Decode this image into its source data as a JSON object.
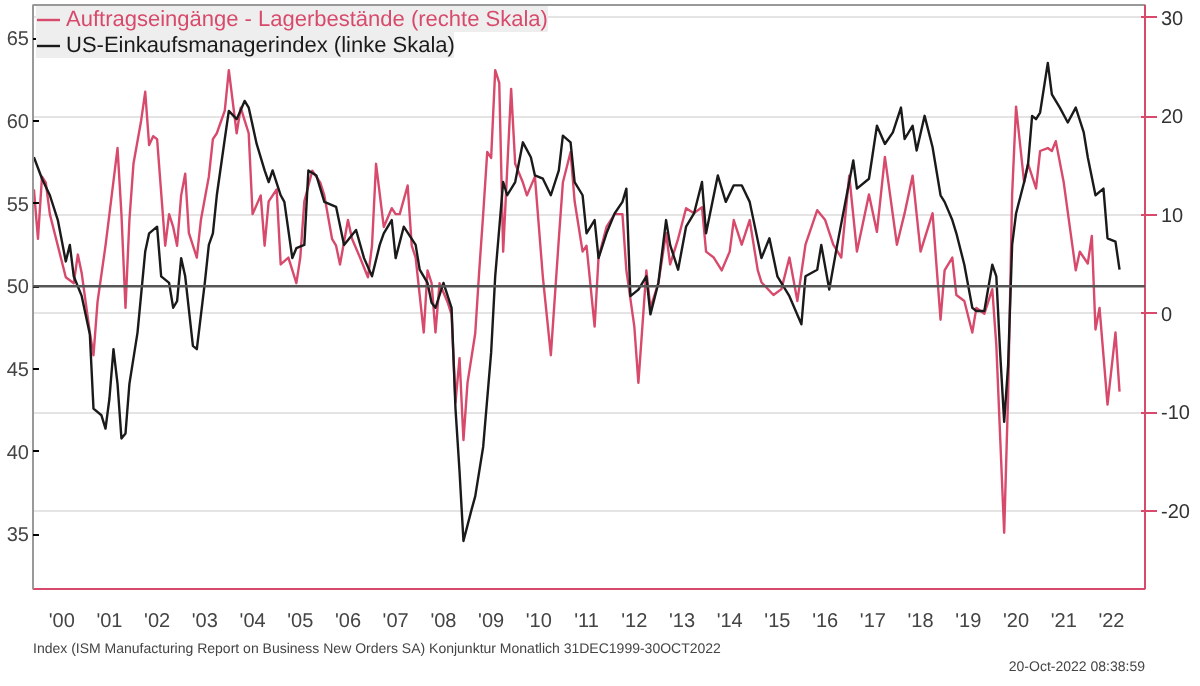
{
  "chart_data": {
    "type": "line",
    "series": [
      {
        "name": "Auftragseingänge - Lagerbestände (rechte Skala)",
        "color": "#d84a6c",
        "axis": "y2",
        "x": [
          "1999-12",
          "2000-01",
          "2000-02",
          "2000-03",
          "2000-04",
          "2000-06",
          "2000-08",
          "2000-10",
          "2000-11",
          "2000-12",
          "2001-02",
          "2001-03",
          "2001-04",
          "2001-06",
          "2001-07",
          "2001-09",
          "2001-10",
          "2001-11",
          "2001-12",
          "2002-01",
          "2002-03",
          "2002-04",
          "2002-05",
          "2002-06",
          "2002-07",
          "2002-09",
          "2002-10",
          "2002-11",
          "2002-12",
          "2003-01",
          "2003-02",
          "2003-03",
          "2003-05",
          "2003-06",
          "2003-08",
          "2003-09",
          "2003-10",
          "2003-12",
          "2004-01",
          "2004-03",
          "2004-04",
          "2004-05",
          "2004-06",
          "2004-07",
          "2004-09",
          "2004-10",
          "2004-11",
          "2005-01",
          "2005-02",
          "2005-04",
          "2005-06",
          "2005-07",
          "2005-08",
          "2005-10",
          "2005-12",
          "2006-01",
          "2006-03",
          "2006-04",
          "2006-05",
          "2006-07",
          "2006-08",
          "2006-10",
          "2006-12",
          "2007-01",
          "2007-02",
          "2007-04",
          "2007-06",
          "2007-07",
          "2007-08",
          "2007-10",
          "2007-11",
          "2007-12",
          "2008-02",
          "2008-03",
          "2008-04",
          "2008-05",
          "2008-06",
          "2008-08",
          "2008-09",
          "2008-10",
          "2008-11",
          "2008-12",
          "2009-01",
          "2009-03",
          "2009-04",
          "2009-05",
          "2009-06",
          "2009-07",
          "2009-08",
          "2009-09",
          "2009-10",
          "2009-12",
          "2010-01",
          "2010-03",
          "2010-04",
          "2010-06",
          "2010-08",
          "2010-10",
          "2010-12",
          "2011-01",
          "2011-03",
          "2011-04",
          "2011-06",
          "2011-07",
          "2011-09",
          "2011-10",
          "2011-12",
          "2012-02",
          "2012-04",
          "2012-05",
          "2012-07",
          "2012-08",
          "2012-10",
          "2012-11",
          "2013-01",
          "2013-03",
          "2013-04",
          "2013-06",
          "2013-08",
          "2013-10",
          "2013-12",
          "2014-01",
          "2014-03",
          "2014-05",
          "2014-07",
          "2014-08",
          "2014-10",
          "2014-12",
          "2015-02",
          "2015-03",
          "2015-06",
          "2015-08",
          "2015-10",
          "2015-12",
          "2016-02",
          "2016-05",
          "2016-07",
          "2016-09",
          "2016-11",
          "2017-01",
          "2017-03",
          "2017-06",
          "2017-08",
          "2017-10",
          "2018-01",
          "2018-03",
          "2018-05",
          "2018-07",
          "2018-10",
          "2018-12",
          "2019-01",
          "2019-03",
          "2019-04",
          "2019-06",
          "2019-08",
          "2019-09",
          "2019-11",
          "2020-01",
          "2020-02",
          "2020-04",
          "2020-05",
          "2020-06",
          "2020-07",
          "2020-09",
          "2020-10",
          "2020-12",
          "2021-01",
          "2021-03",
          "2021-04",
          "2021-05",
          "2021-07",
          "2021-10",
          "2021-11",
          "2022-01",
          "2022-02",
          "2022-03",
          "2022-04",
          "2022-06",
          "2022-08",
          "2022-09"
        ],
        "values": [
          12.6,
          7.6,
          13.9,
          13.3,
          10.1,
          6.9,
          3.7,
          3.1,
          6.0,
          4.1,
          -1.9,
          -4.2,
          1.2,
          6.9,
          10.1,
          16.8,
          10.1,
          0.6,
          9.5,
          15.2,
          19.6,
          22.5,
          17.1,
          18.0,
          17.7,
          6.9,
          10.1,
          8.8,
          6.9,
          12.0,
          14.2,
          8.2,
          5.7,
          9.5,
          13.9,
          17.7,
          18.3,
          20.6,
          24.7,
          18.3,
          20.9,
          19.6,
          18.3,
          10.1,
          12.0,
          6.9,
          11.4,
          12.6,
          5.0,
          5.7,
          3.1,
          5.7,
          11.4,
          14.5,
          13.3,
          12.0,
          7.6,
          6.9,
          5.0,
          9.5,
          7.6,
          5.7,
          3.7,
          6.9,
          15.2,
          8.8,
          10.7,
          10.1,
          10.1,
          13.0,
          6.9,
          5.7,
          -1.9,
          4.4,
          3.1,
          -1.9,
          3.1,
          1.2,
          -0.1,
          -9.0,
          -4.5,
          -12.8,
          -7.0,
          -2.0,
          4.4,
          10.1,
          16.4,
          15.8,
          24.7,
          23.4,
          6.3,
          22.8,
          15.2,
          13.3,
          12.0,
          13.9,
          3.7,
          -4.2,
          7.6,
          13.3,
          16.4,
          11.4,
          6.3,
          6.9,
          -1.3,
          5.7,
          8.8,
          10.1,
          10.1,
          4.4,
          -1.3,
          -7.0,
          4.4,
          0.6,
          3.1,
          8.2,
          5.0,
          7.6,
          10.7,
          10.2,
          10.8,
          6.3,
          5.7,
          4.4,
          6.3,
          9.5,
          7.0,
          9.5,
          4.4,
          3.2,
          1.9,
          2.5,
          5.7,
          1.3,
          7.0,
          10.5,
          9.5,
          7.0,
          5.7,
          14.0,
          6.3,
          12.1,
          8.3,
          15.9,
          7.0,
          10.2,
          14.0,
          6.3,
          10.2,
          -0.6,
          4.4,
          5.7,
          1.9,
          1.3,
          -1.9,
          0.6,
          0.0,
          2.5,
          -3.2,
          -22.2,
          -8.3,
          12.1,
          21.0,
          13.3,
          15.2,
          12.7,
          16.5,
          16.8,
          16.5,
          17.5,
          13.3,
          4.4,
          6.3,
          5.1,
          7.9,
          -1.6,
          0.6,
          -9.2,
          -1.9,
          -7.9
        ]
      },
      {
        "name": "US-Einkaufsmanagerindex (linke Skala)",
        "color": "#1a1a1a",
        "x": [
          "1999-12",
          "2000-02",
          "2000-04",
          "2000-06",
          "2000-08",
          "2000-09",
          "2000-10",
          "2000-12",
          "2001-02",
          "2001-03",
          "2001-05",
          "2001-06",
          "2001-07",
          "2001-08",
          "2001-09",
          "2001-10",
          "2001-11",
          "2001-12",
          "2002-02",
          "2002-04",
          "2002-05",
          "2002-07",
          "2002-08",
          "2002-10",
          "2002-11",
          "2002-12",
          "2003-01",
          "2003-02",
          "2003-04",
          "2003-05",
          "2003-07",
          "2003-08",
          "2003-09",
          "2003-10",
          "2003-12",
          "2004-01",
          "2004-03",
          "2004-05",
          "2004-06",
          "2004-08",
          "2004-10",
          "2004-11",
          "2004-12",
          "2005-02",
          "2005-03",
          "2005-05",
          "2005-06",
          "2005-08",
          "2005-09",
          "2005-11",
          "2006-01",
          "2006-04",
          "2006-06",
          "2006-09",
          "2006-11",
          "2007-01",
          "2007-03",
          "2007-04",
          "2007-06",
          "2007-07",
          "2007-09",
          "2007-12",
          "2008-01",
          "2008-03",
          "2008-04",
          "2008-05",
          "2008-07",
          "2008-09",
          "2008-10",
          "2008-11",
          "2008-12",
          "2009-02",
          "2009-03",
          "2009-05",
          "2009-07",
          "2009-08",
          "2009-10",
          "2009-11",
          "2010-01",
          "2010-03",
          "2010-05",
          "2010-06",
          "2010-08",
          "2010-10",
          "2010-12",
          "2011-01",
          "2011-03",
          "2011-04",
          "2011-06",
          "2011-07",
          "2011-09",
          "2011-10",
          "2011-12",
          "2012-02",
          "2012-04",
          "2012-05",
          "2012-06",
          "2012-08",
          "2012-10",
          "2012-11",
          "2013-01",
          "2013-03",
          "2013-04",
          "2013-06",
          "2013-08",
          "2013-10",
          "2013-12",
          "2014-01",
          "2014-04",
          "2014-06",
          "2014-08",
          "2014-10",
          "2014-12",
          "2015-03",
          "2015-05",
          "2015-07",
          "2015-10",
          "2016-01",
          "2016-02",
          "2016-05",
          "2016-06",
          "2016-08",
          "2016-10",
          "2017-02",
          "2017-03",
          "2017-06",
          "2017-08",
          "2017-10",
          "2017-12",
          "2018-02",
          "2018-03",
          "2018-05",
          "2018-06",
          "2018-08",
          "2018-10",
          "2018-12",
          "2019-01",
          "2019-03",
          "2019-04",
          "2019-06",
          "2019-08",
          "2019-09",
          "2019-11",
          "2020-01",
          "2020-02",
          "2020-03",
          "2020-04",
          "2020-05",
          "2020-06",
          "2020-07",
          "2020-09",
          "2020-10",
          "2020-11",
          "2020-12",
          "2021-01",
          "2021-03",
          "2021-04",
          "2021-06",
          "2021-08",
          "2021-10",
          "2021-12",
          "2022-01",
          "2022-03",
          "2022-05",
          "2022-06",
          "2022-08",
          "2022-09"
        ],
        "values": [
          57.8,
          56.5,
          55.5,
          54.0,
          51.5,
          52.5,
          50.6,
          49.4,
          47.1,
          42.6,
          42.2,
          41.4,
          43.2,
          46.2,
          44.1,
          40.8,
          41.1,
          44.1,
          47.2,
          52.1,
          53.2,
          53.6,
          50.6,
          50.2,
          48.7,
          49.1,
          51.7,
          50.6,
          46.4,
          46.2,
          50.2,
          52.5,
          53.2,
          55.5,
          58.9,
          60.6,
          60.1,
          61.2,
          60.8,
          58.6,
          57.0,
          56.3,
          57.0,
          55.5,
          55.1,
          51.7,
          52.3,
          52.5,
          57.0,
          56.7,
          55.1,
          54.8,
          52.5,
          53.4,
          51.7,
          50.6,
          52.5,
          53.2,
          54.0,
          51.7,
          53.6,
          52.5,
          51.0,
          50.2,
          49.0,
          48.7,
          50.2,
          48.7,
          42.6,
          38.8,
          34.6,
          36.5,
          37.3,
          40.3,
          46.0,
          50.6,
          56.3,
          55.5,
          56.3,
          58.7,
          57.8,
          56.7,
          56.5,
          55.5,
          57.0,
          59.1,
          58.7,
          56.3,
          55.5,
          53.2,
          54.0,
          51.7,
          53.2,
          54.4,
          55.1,
          55.9,
          49.4,
          49.8,
          50.6,
          48.3,
          50.2,
          54.0,
          52.5,
          51.0,
          53.6,
          54.4,
          56.3,
          53.2,
          56.7,
          55.1,
          56.1,
          56.1,
          55.1,
          51.7,
          52.9,
          50.6,
          49.4,
          47.7,
          50.6,
          51.0,
          52.5,
          49.8,
          52.5,
          57.6,
          55.9,
          56.5,
          59.7,
          58.6,
          59.3,
          60.8,
          58.9,
          59.7,
          58.2,
          60.3,
          58.4,
          55.5,
          55.1,
          54.0,
          53.2,
          51.3,
          48.7,
          48.5,
          48.5,
          51.3,
          50.6,
          46.0,
          41.8,
          45.2,
          52.5,
          54.4,
          56.3,
          57.4,
          60.3,
          60.1,
          60.5,
          63.5,
          61.6,
          60.8,
          59.9,
          60.8,
          59.3,
          57.8,
          55.5,
          55.9,
          52.9,
          52.7,
          51.0
        ]
      }
    ],
    "xlim": [
      "1999-11-24",
      "2023-03-15"
    ],
    "xticks": [
      {
        "value": "2000-07",
        "label": "'00"
      },
      {
        "value": "2001-07",
        "label": "'01"
      },
      {
        "value": "2002-07",
        "label": "'02"
      },
      {
        "value": "2003-07",
        "label": "'03"
      },
      {
        "value": "2004-07",
        "label": "'04"
      },
      {
        "value": "2005-07",
        "label": "'05"
      },
      {
        "value": "2006-07",
        "label": "'06"
      },
      {
        "value": "2007-07",
        "label": "'07"
      },
      {
        "value": "2008-07",
        "label": "'08"
      },
      {
        "value": "2009-07",
        "label": "'09"
      },
      {
        "value": "2010-07",
        "label": "'10"
      },
      {
        "value": "2011-07",
        "label": "'11"
      },
      {
        "value": "2012-07",
        "label": "'12"
      },
      {
        "value": "2013-07",
        "label": "'13"
      },
      {
        "value": "2014-07",
        "label": "'14"
      },
      {
        "value": "2015-07",
        "label": "'15"
      },
      {
        "value": "2016-07",
        "label": "'16"
      },
      {
        "value": "2017-07",
        "label": "'17"
      },
      {
        "value": "2018-07",
        "label": "'18"
      },
      {
        "value": "2019-07",
        "label": "'19"
      },
      {
        "value": "2020-07",
        "label": "'20"
      },
      {
        "value": "2021-07",
        "label": "'21"
      },
      {
        "value": "2022-07",
        "label": "'22"
      }
    ],
    "ylim": [
      31.7,
      67
    ],
    "yticks": [
      35,
      40,
      45,
      50,
      55,
      60,
      65
    ],
    "y2lim": [
      -27.9,
      31.3
    ],
    "y2ticks": [
      -20,
      -10,
      0,
      10,
      20,
      30
    ],
    "ref_lines": [
      {
        "axis": "y",
        "value": 50,
        "color": "#555555"
      }
    ],
    "grid": "y",
    "legend": "top left",
    "annotations": [
      "Index (ISM Manufacturing Report on Business New Orders SA) Konjunktur Monatlich 31DEC1999-30OCT2022",
      "20-Oct-2022 08:38:59"
    ]
  }
}
